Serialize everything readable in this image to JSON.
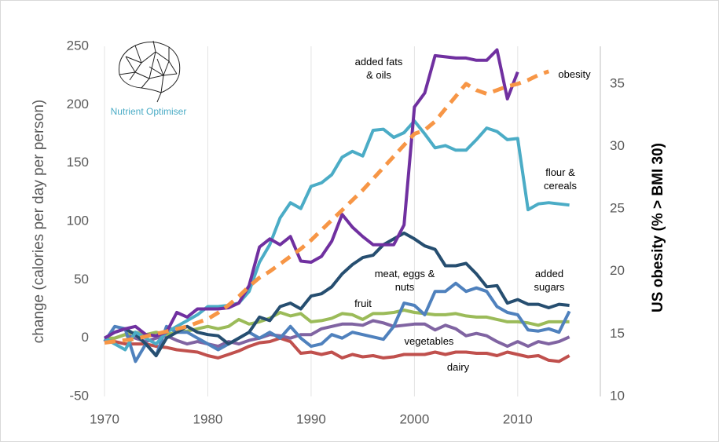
{
  "chart_data": {
    "type": "line",
    "logo_text": "Nutrient Optimiser",
    "ylabel": "change (calories per day per person)",
    "y2label": "US obesity (% > BMI 30)",
    "x": [
      1970,
      1971,
      1972,
      1973,
      1974,
      1975,
      1976,
      1977,
      1978,
      1979,
      1980,
      1981,
      1982,
      1983,
      1984,
      1985,
      1986,
      1987,
      1988,
      1989,
      1990,
      1991,
      1992,
      1993,
      1994,
      1995,
      1996,
      1997,
      1998,
      1999,
      2000,
      2001,
      2002,
      2003,
      2004,
      2005,
      2006,
      2007,
      2008,
      2009,
      2010,
      2011,
      2012,
      2013,
      2014,
      2015
    ],
    "xlim": [
      1970,
      2018
    ],
    "xticks": [
      1970,
      1980,
      1990,
      2000,
      2010
    ],
    "ylim": [
      -50,
      250
    ],
    "yticks": [
      -50,
      0,
      50,
      100,
      150,
      200,
      250
    ],
    "y2lim": [
      10,
      38
    ],
    "y2ticks": [
      10,
      15,
      20,
      25,
      30,
      35
    ],
    "grid": "x",
    "series": [
      {
        "name": "dairy",
        "color": "#c0504d",
        "values": [
          -2,
          -3,
          -5,
          -5,
          -5,
          -7,
          -8,
          -10,
          -11,
          -12,
          -15,
          -17,
          -14,
          -11,
          -7,
          -4,
          -3,
          0,
          -3,
          -13,
          -12,
          -14,
          -12,
          -17,
          -14,
          -16,
          -15,
          -17,
          -16,
          -14,
          -14,
          -14,
          -12,
          -14,
          -12,
          -12,
          -13,
          -13,
          -15,
          -12,
          -14,
          -16,
          -15,
          -19,
          -20,
          -15
        ]
      },
      {
        "name": "vegetables",
        "color": "#8064a2",
        "values": [
          -3,
          0,
          3,
          0,
          -3,
          0,
          2,
          -2,
          -5,
          -3,
          -5,
          -7,
          -3,
          -5,
          -2,
          0,
          3,
          2,
          0,
          3,
          3,
          8,
          10,
          12,
          12,
          11,
          15,
          13,
          10,
          11,
          12,
          12,
          7,
          11,
          8,
          2,
          4,
          2,
          -3,
          -7,
          -3,
          -7,
          -3,
          -5,
          -3,
          1
        ]
      },
      {
        "name": "fruit",
        "color": "#9bbb59",
        "values": [
          0,
          0,
          3,
          5,
          3,
          5,
          3,
          5,
          6,
          8,
          10,
          8,
          10,
          16,
          12,
          14,
          17,
          22,
          19,
          21,
          14,
          15,
          17,
          21,
          20,
          16,
          21,
          21,
          22,
          24,
          22,
          21,
          20,
          20,
          21,
          19,
          18,
          18,
          16,
          14,
          14,
          13,
          11,
          14,
          14,
          14
        ]
      },
      {
        "name": "meat, eggs & nuts",
        "color": "#4f81bd",
        "values": [
          -3,
          10,
          8,
          -20,
          -5,
          -15,
          10,
          5,
          5,
          0,
          -5,
          -10,
          -5,
          0,
          5,
          0,
          5,
          0,
          10,
          0,
          -7,
          -5,
          3,
          0,
          5,
          3,
          1,
          -1,
          10,
          30,
          28,
          20,
          40,
          40,
          47,
          40,
          43,
          40,
          27,
          22,
          20,
          7,
          6,
          8,
          5,
          23
        ]
      },
      {
        "name": "added sugars",
        "color": "#264e70",
        "values": [
          0,
          5,
          8,
          3,
          -5,
          -15,
          0,
          5,
          10,
          5,
          3,
          2,
          -5,
          0,
          5,
          18,
          15,
          27,
          30,
          25,
          36,
          38,
          44,
          55,
          63,
          69,
          71,
          80,
          85,
          90,
          85,
          79,
          76,
          62,
          62,
          64,
          55,
          44,
          45,
          30,
          33,
          29,
          29,
          26,
          29,
          28
        ]
      },
      {
        "name": "flour & cereals",
        "color": "#4bacc6",
        "values": [
          0,
          -5,
          -10,
          5,
          0,
          -5,
          5,
          10,
          15,
          20,
          27,
          27,
          28,
          30,
          40,
          65,
          80,
          103,
          116,
          111,
          130,
          133,
          140,
          155,
          160,
          156,
          178,
          179,
          172,
          176,
          186,
          175,
          163,
          165,
          161,
          161,
          170,
          180,
          177,
          170,
          171,
          110,
          115,
          116,
          115,
          114
        ]
      },
      {
        "name": "added fats & oils",
        "color": "#7030a0",
        "values": [
          0,
          5,
          8,
          10,
          3,
          2,
          5,
          22,
          18,
          25,
          25,
          25,
          26,
          30,
          45,
          78,
          85,
          80,
          87,
          66,
          65,
          70,
          83,
          106,
          95,
          87,
          80,
          80,
          80,
          97,
          198,
          210,
          242,
          241,
          240,
          240,
          238,
          238,
          247,
          205,
          228,
          null,
          null,
          null,
          null,
          null
        ]
      },
      {
        "name": "obesity",
        "color": "#f79646",
        "axis": "y2",
        "dashed": true,
        "values": [
          14.3,
          14.4,
          14.5,
          14.6,
          14.8,
          15,
          15.2,
          15.4,
          15.6,
          15.9,
          16.2,
          16.7,
          17.3,
          18,
          18.8,
          19.5,
          20,
          20.6,
          21.2,
          21.8,
          22.5,
          23.3,
          24.1,
          24.9,
          25.7,
          26.5,
          27.4,
          28.3,
          29.2,
          30.1,
          31,
          31.3,
          32,
          33,
          34,
          35,
          34.5,
          34.2,
          34.5,
          34.8,
          35,
          35.3,
          35.7,
          36,
          null,
          null
        ]
      }
    ]
  }
}
